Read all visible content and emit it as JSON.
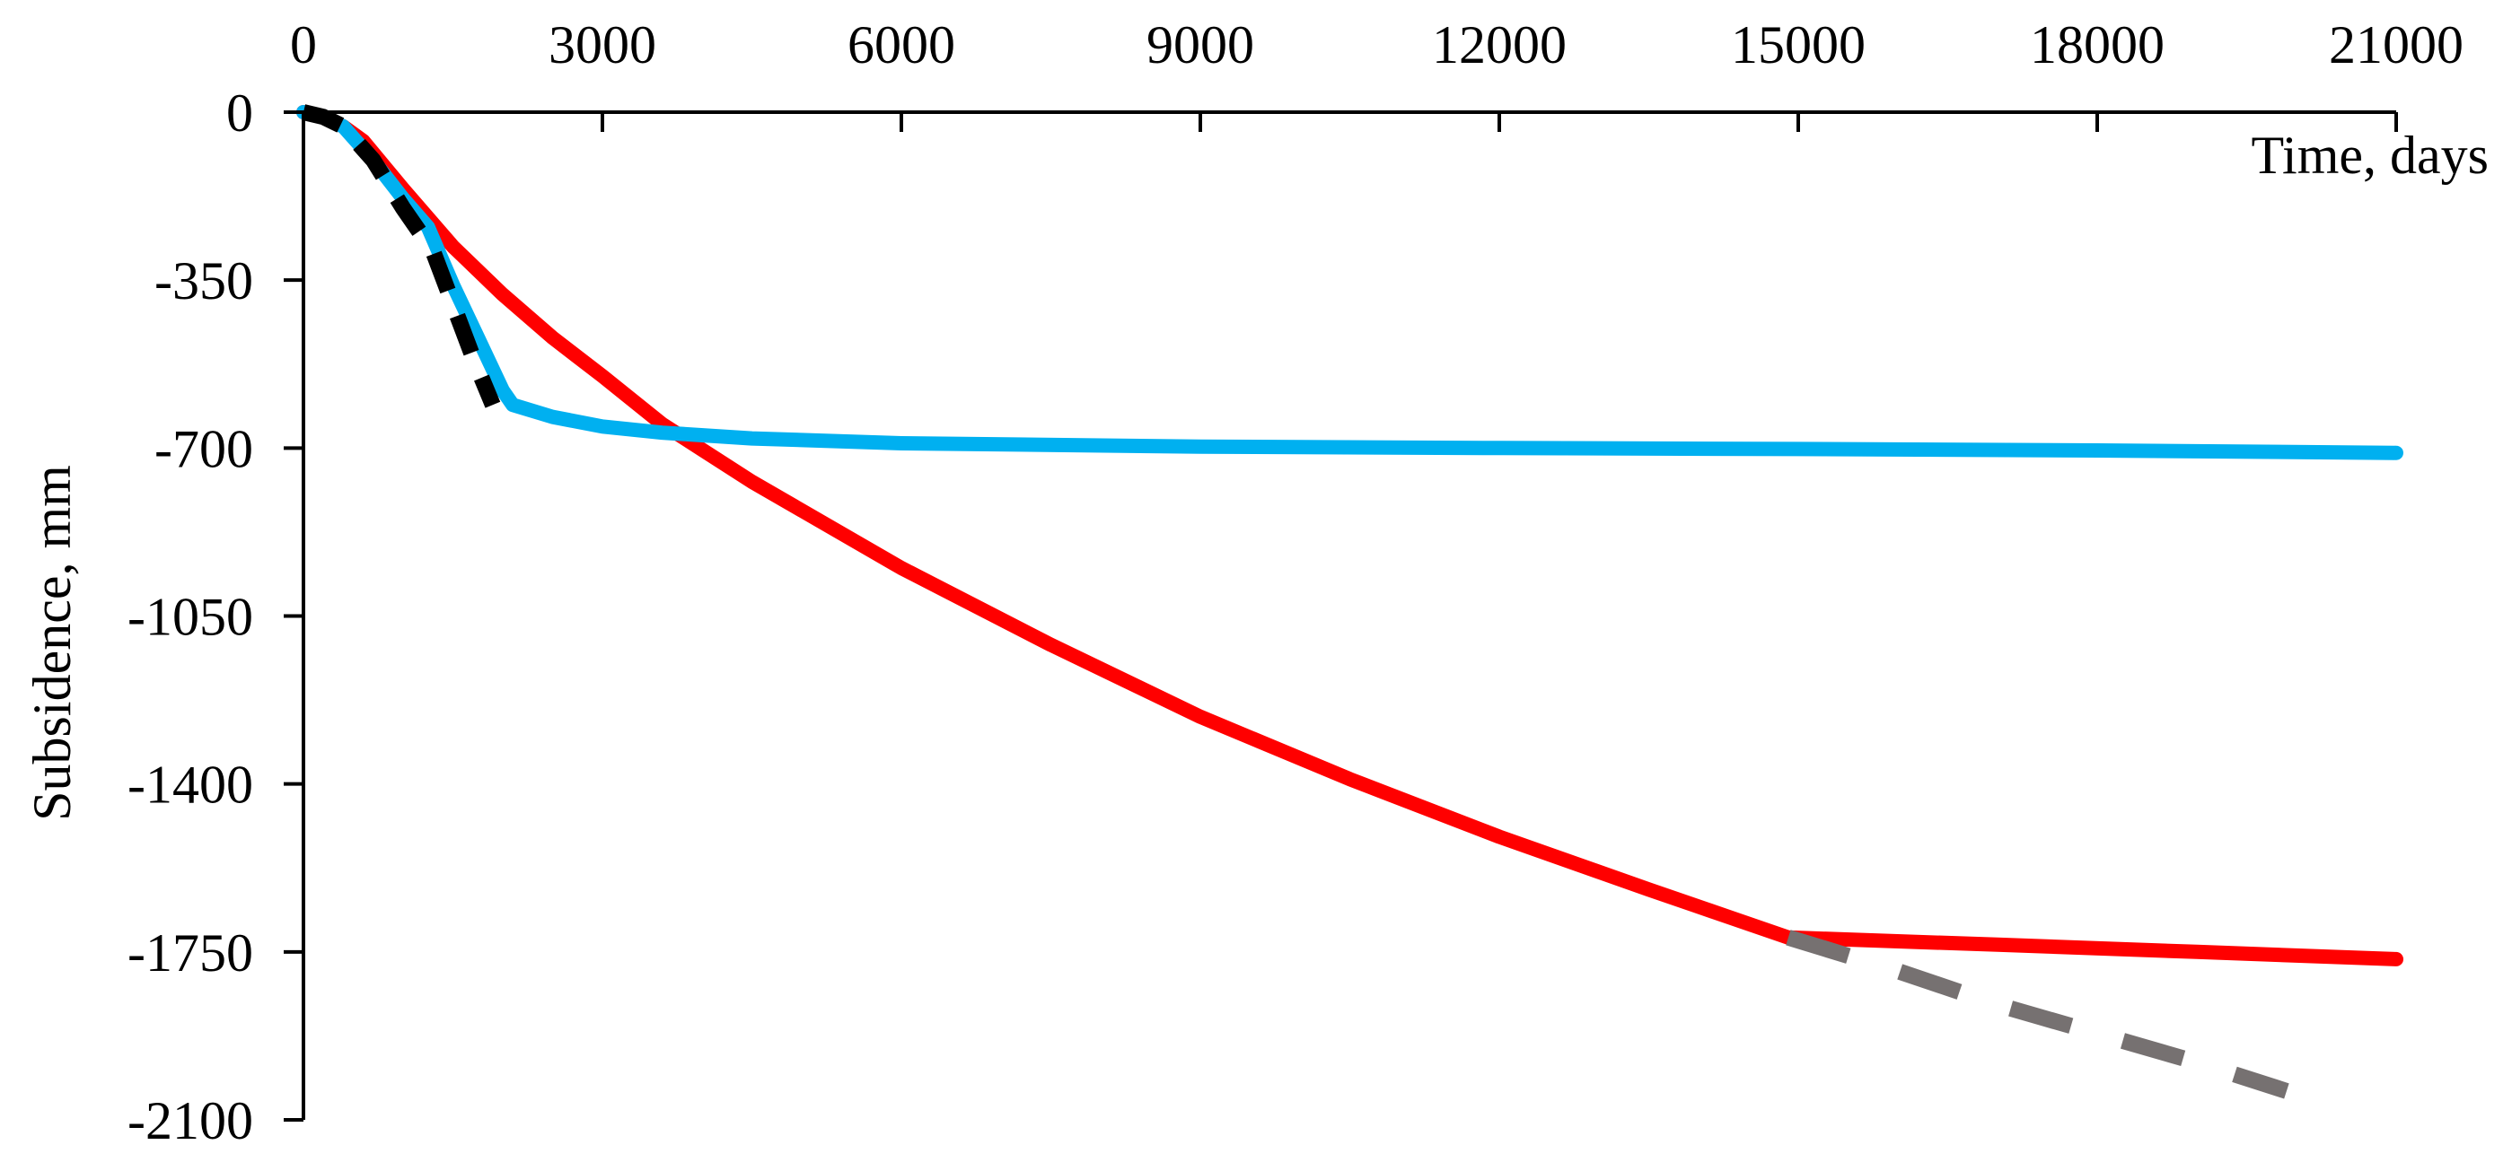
{
  "chart_data": {
    "type": "line",
    "title": "",
    "xlabel": "Time, days",
    "ylabel": "Subsidence, mm",
    "xlim": [
      0,
      21000
    ],
    "ylim": [
      -2100,
      0
    ],
    "x_ticks": [
      0,
      3000,
      6000,
      9000,
      12000,
      15000,
      18000,
      21000
    ],
    "y_ticks": [
      0,
      -350,
      -700,
      -1050,
      -1400,
      -1750,
      -2100
    ],
    "x_tick_labels": [
      "0",
      "3000",
      "6000",
      "9000",
      "12000",
      "15000",
      "18000",
      "21000"
    ],
    "y_tick_labels": [
      "0",
      "-350",
      "-700",
      "-1050",
      "-1400",
      "-1750",
      "-2100"
    ],
    "x_axis_position": "top",
    "grid": false,
    "legend": "none",
    "series": [
      {
        "color": "#ff0000",
        "style": "solid",
        "x": [
          0,
          200,
          400,
          600,
          1000,
          1500,
          2000,
          2500,
          3000,
          3600,
          4500,
          6000,
          7500,
          9000,
          10500,
          12000,
          13500,
          14900,
          17000,
          19000,
          21000
        ],
        "y": [
          0,
          -10,
          -30,
          -60,
          -160,
          -280,
          -380,
          -470,
          -550,
          -650,
          -770,
          -950,
          -1110,
          -1260,
          -1390,
          -1510,
          -1620,
          -1720,
          -1735,
          -1750,
          -1765
        ]
      },
      {
        "color": "#00b0f0",
        "style": "solid",
        "x": [
          0,
          200,
          400,
          700,
          1000,
          1250,
          1500,
          1750,
          2000,
          2100,
          2500,
          3000,
          3600,
          4500,
          6000,
          9000,
          12000,
          15000,
          18000,
          21000
        ],
        "y": [
          0,
          -10,
          -30,
          -100,
          -180,
          -240,
          -360,
          -470,
          -580,
          -610,
          -635,
          -655,
          -668,
          -680,
          -690,
          -697,
          -700,
          -702,
          -705,
          -710
        ]
      },
      {
        "color": "#000000",
        "style": "dashed",
        "x": [
          0,
          200,
          400,
          700,
          1000,
          1300,
          1500,
          1700,
          1900
        ],
        "y": [
          0,
          -10,
          -30,
          -100,
          -200,
          -290,
          -400,
          -510,
          -610
        ]
      },
      {
        "color": "#767171",
        "style": "dashed",
        "x": [
          14900,
          16000,
          17000,
          18000,
          19000,
          19900
        ],
        "y": [
          -1720,
          -1790,
          -1860,
          -1920,
          -1980,
          -2040
        ]
      }
    ]
  }
}
